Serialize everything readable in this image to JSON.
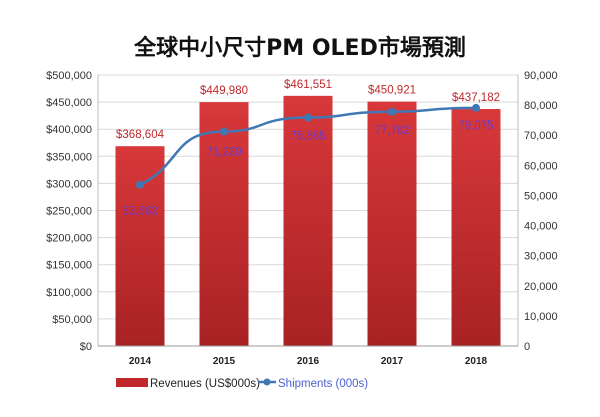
{
  "chart_data": {
    "type": "bar+line",
    "title": "全球中小尺寸PM OLED市場預測",
    "categories": [
      "2014",
      "2015",
      "2016",
      "2017",
      "2018"
    ],
    "series": [
      {
        "name": "Revenues (US$000s)",
        "type": "bar",
        "axis": "left",
        "color": "#c0282c",
        "values": [
          368604,
          449980,
          461551,
          450921,
          437182
        ],
        "labels": [
          "$368,604",
          "$449,980",
          "$461,551",
          "$450,921",
          "$437,182"
        ]
      },
      {
        "name": "Shipments (000s)",
        "type": "line",
        "axis": "right",
        "color": "#3f78b5",
        "values": [
          53562,
          71220,
          75865,
          77782,
          79075
        ],
        "labels": [
          "53,562",
          "71,220",
          "75,865",
          "77,782",
          "79,075"
        ]
      }
    ],
    "left_axis": {
      "range": [
        0,
        500000
      ],
      "ticks": [
        "$0",
        "$50,000",
        "$100,000",
        "$150,000",
        "$200,000",
        "$250,000",
        "$300,000",
        "$350,000",
        "$400,000",
        "$450,000",
        "$500,000"
      ]
    },
    "right_axis": {
      "range": [
        0,
        90000
      ],
      "ticks": [
        "0",
        "10,000",
        "20,000",
        "30,000",
        "40,000",
        "50,000",
        "60,000",
        "70,000",
        "80,000",
        "90,000"
      ]
    },
    "grid": true,
    "legend": "bottom-left"
  }
}
